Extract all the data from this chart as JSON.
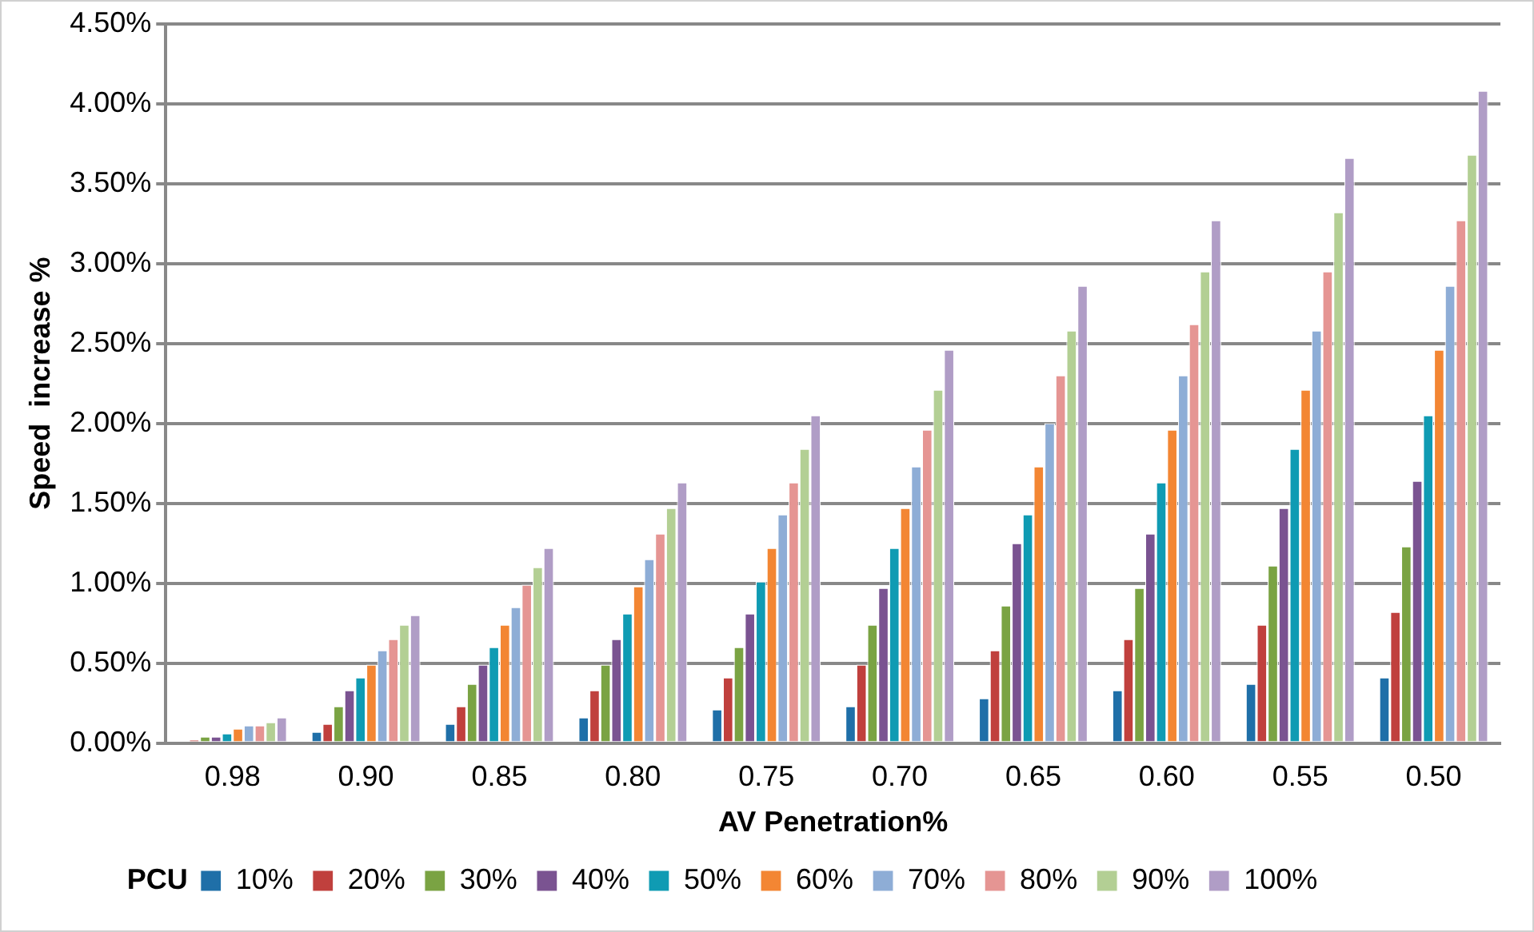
{
  "chart_data": {
    "type": "bar",
    "xlabel": "AV Penetration%",
    "ylabel": "Speed  increase %",
    "legend_title": "PCU",
    "legend": "bottom",
    "grid": "y",
    "categories": [
      "0.98",
      "0.90",
      "0.85",
      "0.80",
      "0.75",
      "0.70",
      "0.65",
      "0.60",
      "0.55",
      "0.50"
    ],
    "ylim": [
      0,
      4.5
    ],
    "yticks": [
      {
        "value": 0,
        "label": "0.00%"
      },
      {
        "value": 0.5,
        "label": "0.50%"
      },
      {
        "value": 1,
        "label": "1.00%"
      },
      {
        "value": 1.5,
        "label": "1.50%"
      },
      {
        "value": 2,
        "label": "2.00%"
      },
      {
        "value": 2.5,
        "label": "2.50%"
      },
      {
        "value": 3,
        "label": "3.00%"
      },
      {
        "value": 3.5,
        "label": "3.50%"
      },
      {
        "value": 4,
        "label": "4.00%"
      },
      {
        "value": 4.5,
        "label": "4.50%"
      }
    ],
    "series": [
      {
        "name": "10%",
        "color": "#1f6fa8",
        "values": [
          0.01,
          0.07,
          0.12,
          0.16,
          0.21,
          0.23,
          0.28,
          0.33,
          0.37,
          0.41
        ]
      },
      {
        "name": "20%",
        "color": "#c0403d",
        "values": [
          0.02,
          0.12,
          0.23,
          0.33,
          0.41,
          0.49,
          0.58,
          0.65,
          0.74,
          0.82
        ]
      },
      {
        "name": "30%",
        "color": "#7aa343",
        "values": [
          0.04,
          0.23,
          0.37,
          0.49,
          0.6,
          0.74,
          0.86,
          0.97,
          1.11,
          1.23
        ]
      },
      {
        "name": "40%",
        "color": "#7a5391",
        "values": [
          0.04,
          0.33,
          0.49,
          0.65,
          0.81,
          0.97,
          1.25,
          1.31,
          1.47,
          1.64
        ]
      },
      {
        "name": "50%",
        "color": "#0f9bb3",
        "values": [
          0.06,
          0.41,
          0.6,
          0.81,
          1.01,
          1.22,
          1.43,
          1.63,
          1.84,
          2.05
        ]
      },
      {
        "name": "60%",
        "color": "#f38633",
        "values": [
          0.09,
          0.49,
          0.74,
          0.98,
          1.22,
          1.47,
          1.73,
          1.96,
          2.21,
          2.46
        ]
      },
      {
        "name": "70%",
        "color": "#8eadd6",
        "values": [
          0.11,
          0.58,
          0.85,
          1.15,
          1.43,
          1.73,
          2.0,
          2.3,
          2.58,
          2.86
        ]
      },
      {
        "name": "80%",
        "color": "#e59593",
        "values": [
          0.11,
          0.65,
          0.99,
          1.31,
          1.63,
          1.96,
          2.3,
          2.62,
          2.95,
          3.27
        ]
      },
      {
        "name": "90%",
        "color": "#b3cf94",
        "values": [
          0.13,
          0.74,
          1.1,
          1.47,
          1.84,
          2.21,
          2.58,
          2.95,
          3.32,
          3.68
        ]
      },
      {
        "name": "100%",
        "color": "#b09dc6",
        "values": [
          0.16,
          0.8,
          1.22,
          1.63,
          2.05,
          2.46,
          2.86,
          3.27,
          3.66,
          4.08
        ]
      }
    ]
  }
}
